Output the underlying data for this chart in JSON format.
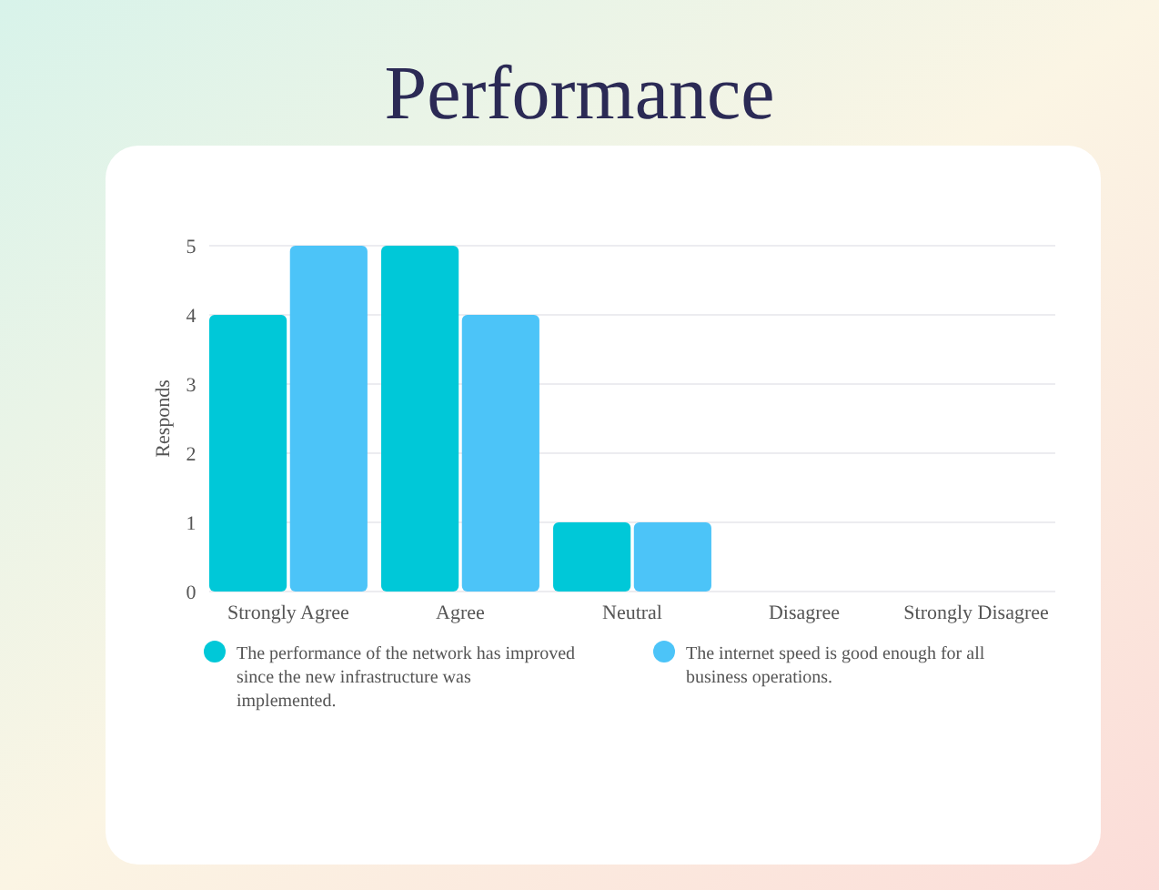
{
  "chart_data": {
    "type": "bar",
    "title": "Performance",
    "ylabel": "Responds",
    "categories": [
      "Strongly Agree",
      "Agree",
      "Neutral",
      "Disagree",
      "Strongly Disagree"
    ],
    "series": [
      {
        "name": "The performance of the network has improved since the new infrastructure was implemented.",
        "color": "#00c8d8",
        "values": [
          4,
          5,
          1,
          0,
          0
        ]
      },
      {
        "name": "The internet speed is good enough for all business operations.",
        "color": "#4cc4f8",
        "values": [
          5,
          4,
          1,
          0,
          0
        ]
      }
    ],
    "ylim": [
      0,
      5
    ],
    "yticks": [
      0,
      1,
      2,
      3,
      4,
      5
    ],
    "grid": "y",
    "legend": "bottom"
  }
}
